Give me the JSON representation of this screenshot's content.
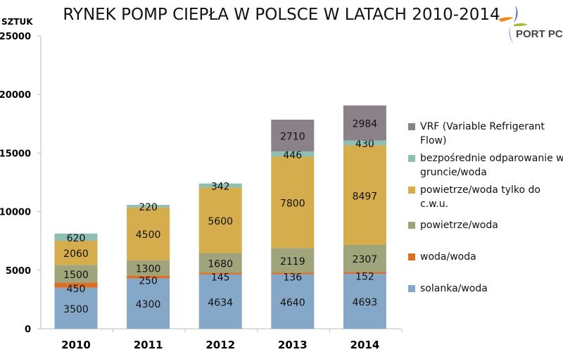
{
  "chart_data": {
    "type": "bar",
    "stacked": true,
    "title": "RYNEK POMP CIEPŁA W POLSCE W LATACH 2010-2014",
    "ylabel": "SZTUK",
    "xlabel": "",
    "ylim": [
      0,
      25000
    ],
    "yticks": [
      0,
      5000,
      10000,
      15000,
      20000,
      25000
    ],
    "grid": false,
    "legend_position": "right",
    "categories": [
      "2010",
      "2011",
      "2012",
      "2013",
      "2014"
    ],
    "series": [
      {
        "name": "solanka/woda",
        "color": "#86a8c8",
        "values": [
          3500,
          4300,
          4634,
          4640,
          4693
        ]
      },
      {
        "name": "woda/woda",
        "color": "#d8702a",
        "values": [
          450,
          250,
          145,
          136,
          152
        ]
      },
      {
        "name": "powietrze/woda",
        "color": "#a0a47a",
        "values": [
          1500,
          1300,
          1680,
          2119,
          2307
        ]
      },
      {
        "name": "powietrze/woda tylko do c.w.u.",
        "color": "#d6ad4c",
        "values": [
          2060,
          4500,
          5600,
          7800,
          8497
        ]
      },
      {
        "name": "bezpośrednie odparowanie w gruncie/woda",
        "color": "#8ebfb2",
        "values": [
          620,
          220,
          342,
          446,
          430
        ]
      },
      {
        "name": "VRF (Variable Refrigerant Flow)",
        "color": "#8b8188",
        "values": [
          null,
          null,
          null,
          2710,
          2984
        ]
      }
    ]
  },
  "logo": {
    "text": "PORT PC"
  }
}
